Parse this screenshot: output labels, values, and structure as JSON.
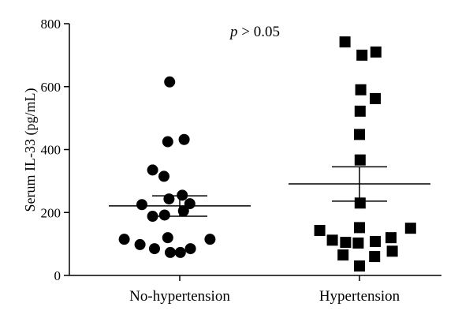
{
  "chart_data": {
    "type": "scatter",
    "ylabel": "Serum IL-33 (pg/mL)",
    "ylim": [
      0,
      800
    ],
    "yticks": [
      0,
      200,
      400,
      600,
      800
    ],
    "categories": [
      "No-hypertension",
      "Hypertension"
    ],
    "annotation": {
      "symbol": "p",
      "text": " > 0.05"
    },
    "series": [
      {
        "category": "No-hypertension",
        "marker": "circle",
        "color": "#000000",
        "mean": 221,
        "sem_upper": 253,
        "sem_lower": 188,
        "points": [
          {
            "offset": -0.16,
            "value": 615
          },
          {
            "offset": -0.19,
            "value": 425
          },
          {
            "offset": 0.07,
            "value": 432
          },
          {
            "offset": -0.43,
            "value": 335
          },
          {
            "offset": -0.25,
            "value": 315
          },
          {
            "offset": -0.17,
            "value": 243
          },
          {
            "offset": 0.04,
            "value": 255
          },
          {
            "offset": -0.6,
            "value": 225
          },
          {
            "offset": 0.16,
            "value": 228
          },
          {
            "offset": 0.06,
            "value": 205
          },
          {
            "offset": -0.43,
            "value": 188
          },
          {
            "offset": -0.24,
            "value": 192
          },
          {
            "offset": -0.88,
            "value": 115
          },
          {
            "offset": -0.19,
            "value": 120
          },
          {
            "offset": 0.48,
            "value": 115
          },
          {
            "offset": -0.63,
            "value": 98
          },
          {
            "offset": -0.4,
            "value": 85
          },
          {
            "offset": 0.17,
            "value": 85
          },
          {
            "offset": -0.15,
            "value": 73
          },
          {
            "offset": 0.01,
            "value": 73
          }
        ]
      },
      {
        "category": "Hypertension",
        "marker": "square",
        "color": "#000000",
        "mean": 291,
        "sem_upper": 345,
        "sem_lower": 236,
        "points": [
          {
            "offset": -0.23,
            "value": 742
          },
          {
            "offset": 0.04,
            "value": 700
          },
          {
            "offset": 0.26,
            "value": 710
          },
          {
            "offset": 0.02,
            "value": 590
          },
          {
            "offset": 0.25,
            "value": 562
          },
          {
            "offset": 0.01,
            "value": 522
          },
          {
            "offset": 0.0,
            "value": 448
          },
          {
            "offset": 0.01,
            "value": 367
          },
          {
            "offset": 0.01,
            "value": 230
          },
          {
            "offset": -0.63,
            "value": 143
          },
          {
            "offset": 0.0,
            "value": 152
          },
          {
            "offset": 0.81,
            "value": 150
          },
          {
            "offset": -0.43,
            "value": 112
          },
          {
            "offset": -0.22,
            "value": 105
          },
          {
            "offset": -0.02,
            "value": 103
          },
          {
            "offset": 0.25,
            "value": 108
          },
          {
            "offset": 0.5,
            "value": 120
          },
          {
            "offset": -0.26,
            "value": 65
          },
          {
            "offset": 0.24,
            "value": 60
          },
          {
            "offset": 0.52,
            "value": 77
          },
          {
            "offset": 0.0,
            "value": 30
          }
        ]
      }
    ]
  }
}
